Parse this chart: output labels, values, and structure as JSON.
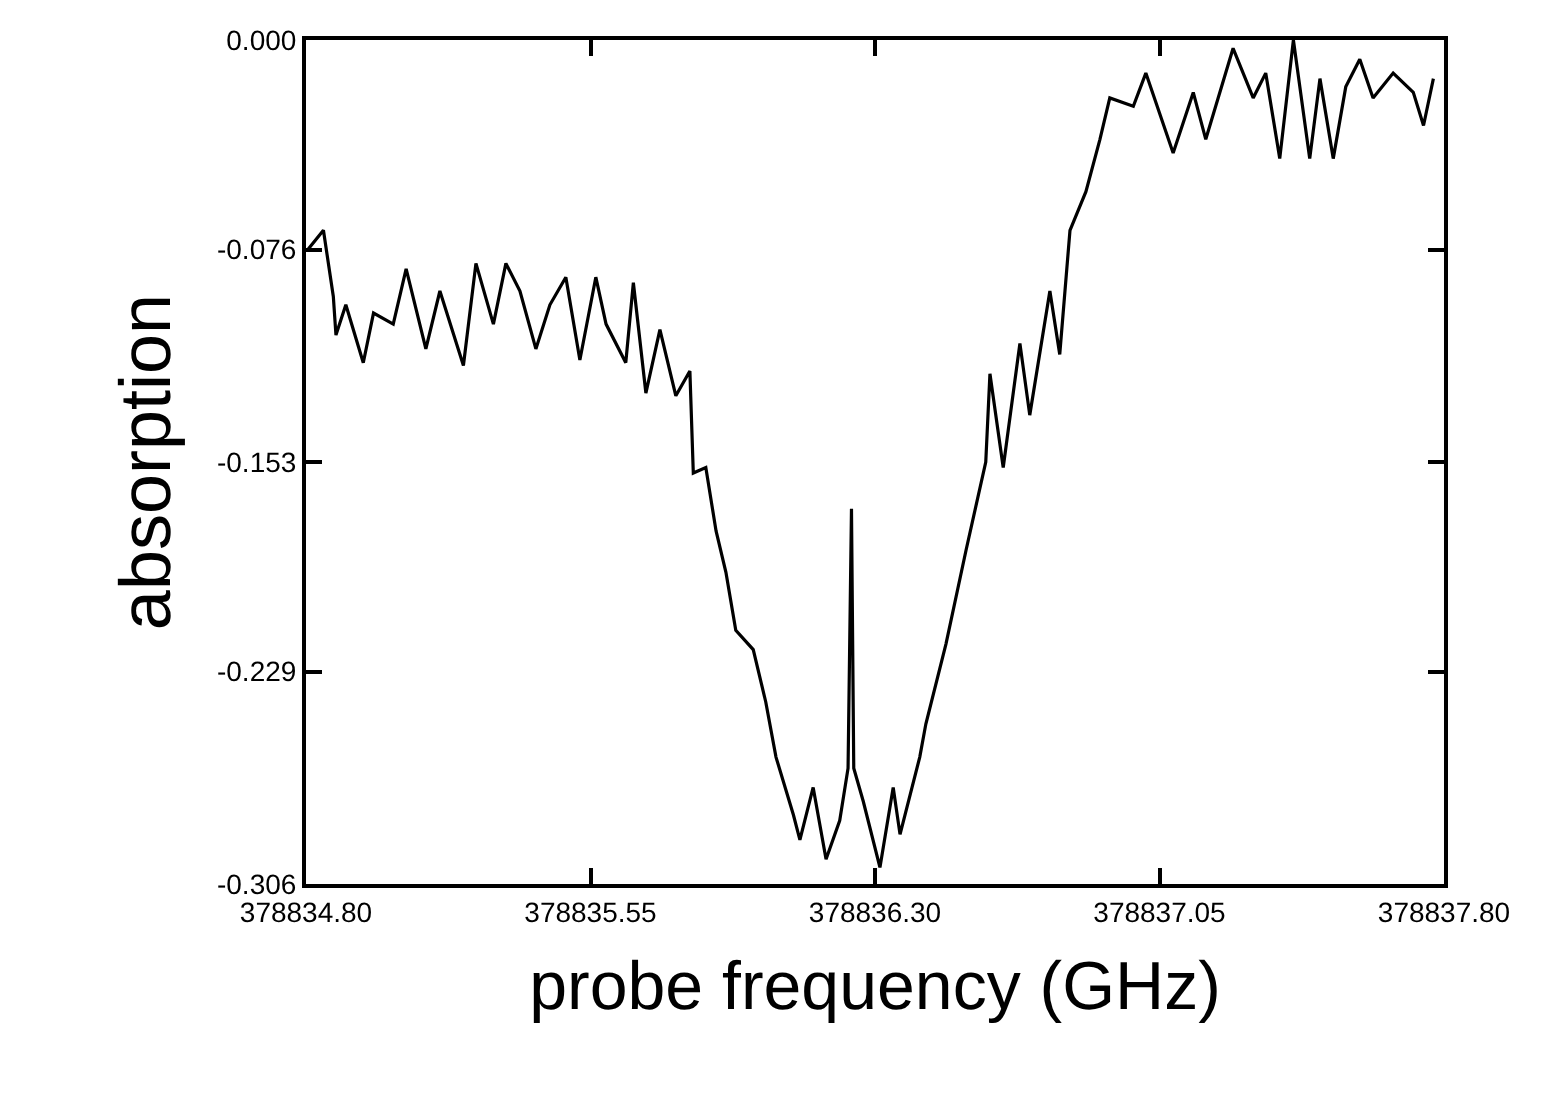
{
  "chart_data": {
    "type": "line",
    "xlabel": "probe frequency (GHz)",
    "ylabel": "absorption",
    "xlim": [
      378834.8,
      378837.8
    ],
    "ylim": [
      -0.306,
      0.0
    ],
    "xticks": [
      {
        "value": 378834.8,
        "label": "378834.80"
      },
      {
        "value": 378835.55,
        "label": "378835.55"
      },
      {
        "value": 378836.3,
        "label": "378836.30"
      },
      {
        "value": 378837.05,
        "label": "378837.05"
      },
      {
        "value": 378837.8,
        "label": "378837.80"
      }
    ],
    "yticks": [
      {
        "value": 0,
        "label": "0.000"
      },
      -0.076,
      -0.153,
      -0.229,
      -0.306
    ],
    "marker": "none",
    "line_style": "solid",
    "series": [
      {
        "color": "#000000",
        "x": [
          378834.805,
          378834.846,
          378834.872,
          378834.879,
          378834.905,
          378834.951,
          378834.978,
          378835.03,
          378835.064,
          378835.116,
          378835.153,
          378835.215,
          378835.248,
          378835.294,
          378835.327,
          378835.364,
          378835.406,
          378835.443,
          378835.485,
          378835.522,
          378835.564,
          378835.591,
          378835.643,
          378835.663,
          378835.696,
          378835.733,
          378835.775,
          378835.812,
          378835.821,
          378835.854,
          378835.881,
          378835.907,
          378835.933,
          378835.979,
          378836.012,
          378836.039,
          378836.085,
          378836.102,
          378836.137,
          378836.171,
          378836.207,
          378836.229,
          378836.238,
          378836.244,
          378836.269,
          378836.313,
          378836.348,
          378836.366,
          378836.418,
          378836.434,
          378836.487,
          378836.54,
          378836.592,
          378836.603,
          378836.638,
          378836.682,
          378836.708,
          378836.761,
          378836.787,
          378836.814,
          378836.856,
          378836.893,
          378836.919,
          378836.981,
          378837.014,
          378837.086,
          378837.139,
          378837.172,
          378837.244,
          378837.297,
          378837.33,
          378837.367,
          378837.403,
          378837.446,
          378837.473,
          378837.508,
          378837.541,
          378837.578,
          378837.613,
          378837.666,
          378837.719,
          378837.746,
          378837.772
        ],
        "values": [
          -0.076,
          -0.069,
          -0.093,
          -0.107,
          -0.096,
          -0.117,
          -0.099,
          -0.103,
          -0.083,
          -0.112,
          -0.091,
          -0.118,
          -0.081,
          -0.103,
          -0.081,
          -0.091,
          -0.112,
          -0.096,
          -0.086,
          -0.116,
          -0.086,
          -0.103,
          -0.117,
          -0.088,
          -0.128,
          -0.105,
          -0.129,
          -0.12,
          -0.157,
          -0.155,
          -0.178,
          -0.193,
          -0.214,
          -0.221,
          -0.24,
          -0.26,
          -0.281,
          -0.29,
          -0.271,
          -0.297,
          -0.283,
          -0.264,
          -0.17,
          -0.264,
          -0.276,
          -0.3,
          -0.271,
          -0.288,
          -0.26,
          -0.248,
          -0.219,
          -0.185,
          -0.153,
          -0.121,
          -0.155,
          -0.11,
          -0.136,
          -0.091,
          -0.114,
          -0.069,
          -0.055,
          -0.036,
          -0.021,
          -0.024,
          -0.012,
          -0.041,
          -0.019,
          -0.036,
          -0.003,
          -0.021,
          -0.012,
          -0.043,
          0.0,
          -0.043,
          -0.014,
          -0.043,
          -0.017,
          -0.007,
          -0.021,
          -0.012,
          -0.019,
          -0.031,
          -0.014
        ]
      }
    ]
  }
}
